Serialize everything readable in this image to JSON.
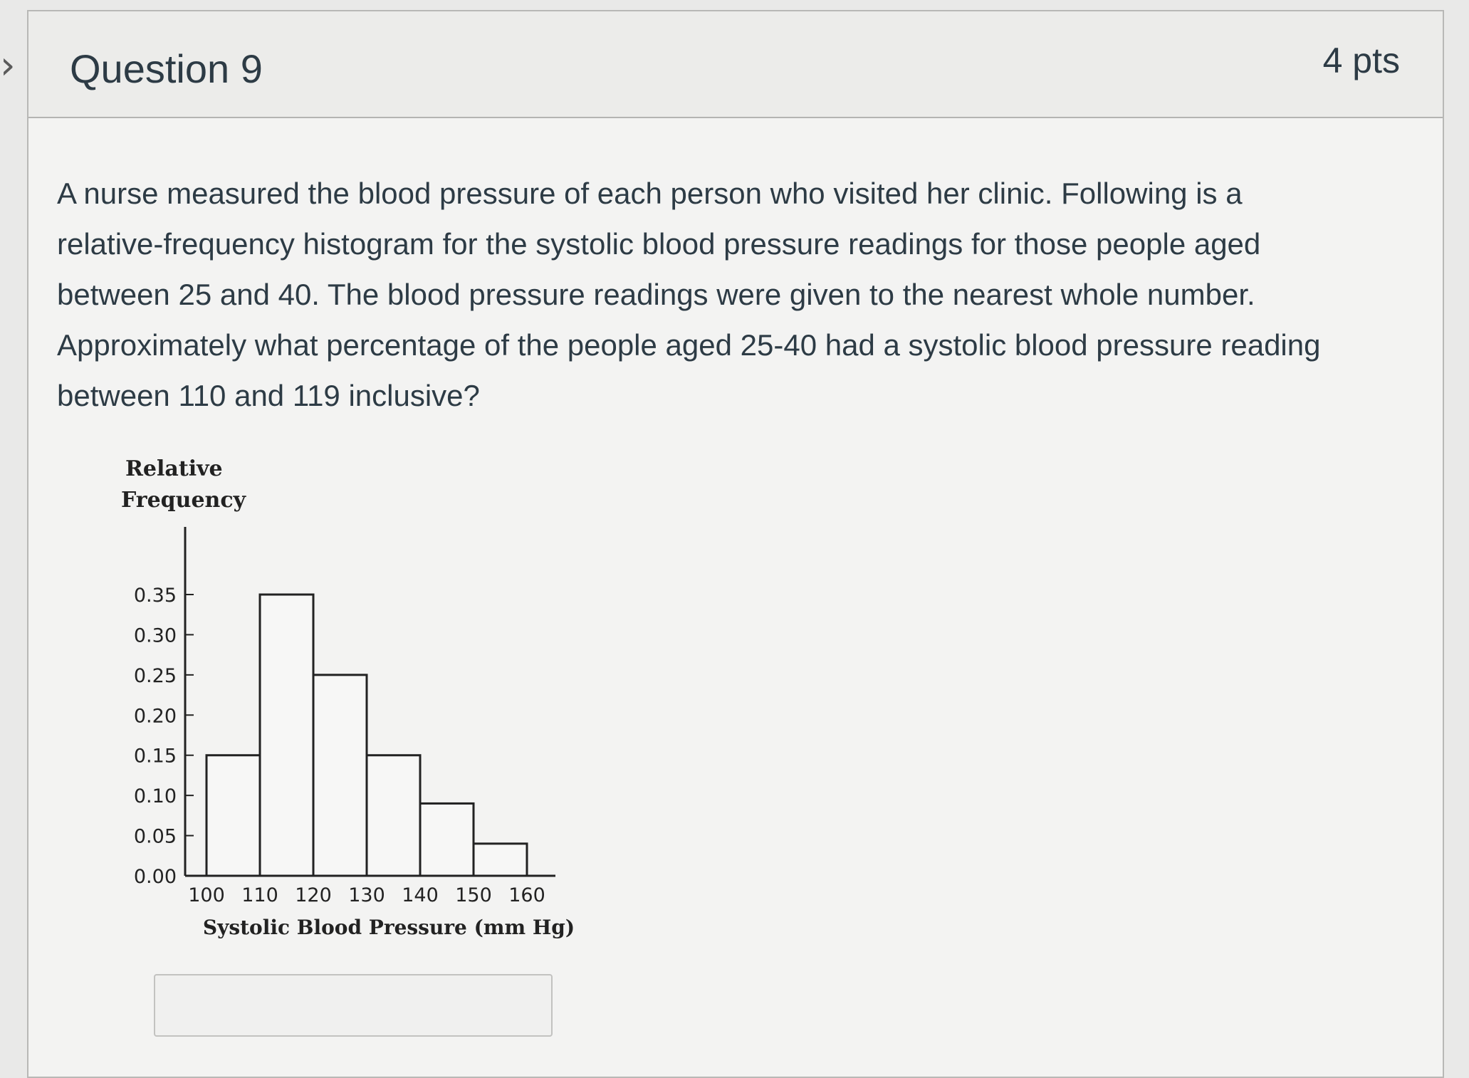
{
  "nav": {
    "prev_glyph": "›"
  },
  "question": {
    "title": "Question 9",
    "points": "4 pts",
    "text_lines": [
      "A nurse measured the blood pressure of each person who visited her clinic. Following is a",
      "relative-frequency histogram for the systolic blood pressure readings for those people aged",
      "between 25 and 40. The blood pressure readings were given to the nearest whole number.",
      "Approximately what percentage of the people aged 25-40 had a systolic blood pressure reading",
      "between 110 and 119 inclusive?"
    ]
  },
  "answer": {
    "value": ""
  },
  "chart_data": {
    "type": "bar",
    "ylabel_lines": [
      "Relative",
      "Frequency"
    ],
    "xlabel": "Systolic Blood Pressure (mm Hg)",
    "bins": [
      {
        "from": 100,
        "to": 110,
        "value": 0.15
      },
      {
        "from": 110,
        "to": 120,
        "value": 0.35
      },
      {
        "from": 120,
        "to": 130,
        "value": 0.25
      },
      {
        "from": 130,
        "to": 140,
        "value": 0.15
      },
      {
        "from": 140,
        "to": 150,
        "value": 0.09
      },
      {
        "from": 150,
        "to": 160,
        "value": 0.04
      }
    ],
    "x_ticks": [
      "100",
      "110",
      "120",
      "130",
      "140",
      "150",
      "160"
    ],
    "y_ticks": [
      {
        "value": 0.0,
        "label": "0.00"
      },
      {
        "value": 0.05,
        "label": "0.05"
      },
      {
        "value": 0.1,
        "label": "0.10"
      },
      {
        "value": 0.15,
        "label": "0.15"
      },
      {
        "value": 0.2,
        "label": "0.20"
      },
      {
        "value": 0.25,
        "label": "0.25"
      },
      {
        "value": 0.3,
        "label": "0.30"
      },
      {
        "value": 0.35,
        "label": "0.35"
      }
    ],
    "ylim": [
      0,
      0.35
    ],
    "xlim": [
      100,
      160
    ],
    "grid": false
  }
}
